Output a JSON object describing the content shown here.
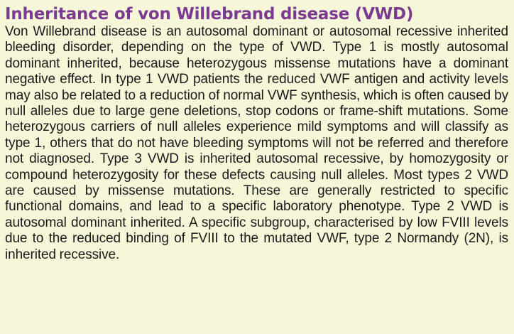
{
  "section": {
    "title": "Inheritance of von Willebrand disease (VWD)",
    "body": "Von Willebrand disease is an autosomal dominant or autosomal recessive inherited bleeding disorder, depending on the type of VWD. Type 1 is mostly autosomal dominant inherited, because heterozygous missense mutations have a dominant negative effect. In type 1 VWD patients the reduced VWF antigen and activity levels may also be related to a reduction of normal VWF synthesis, which is often caused by null alleles due to large gene deletions, stop codons or frame-shift mutations. Some heterozygous carriers of null alleles experience mild symptoms and will classify as type 1, others that do not have bleeding symptoms will not be referred and therefore not diagnosed. Type 3 VWD is inherited autosomal recessive, by homozygosity or compound heterozygosity for these defects causing null alleles. Most types 2 VWD are caused by missense mutations. These are generally restricted to specific functional domains, and lead to a specific laboratory phenotype. Type 2 VWD is autosomal dominant inherited. A specific subgroup, characterised by low FVIII levels due to the reduced binding of FVIII to the mutated VWF, type 2 Normandy (2N), is inherited recessive."
  },
  "colors": {
    "background": "#f6f7d9",
    "heading": "#7a3a8f",
    "text": "#1a1a1a"
  }
}
